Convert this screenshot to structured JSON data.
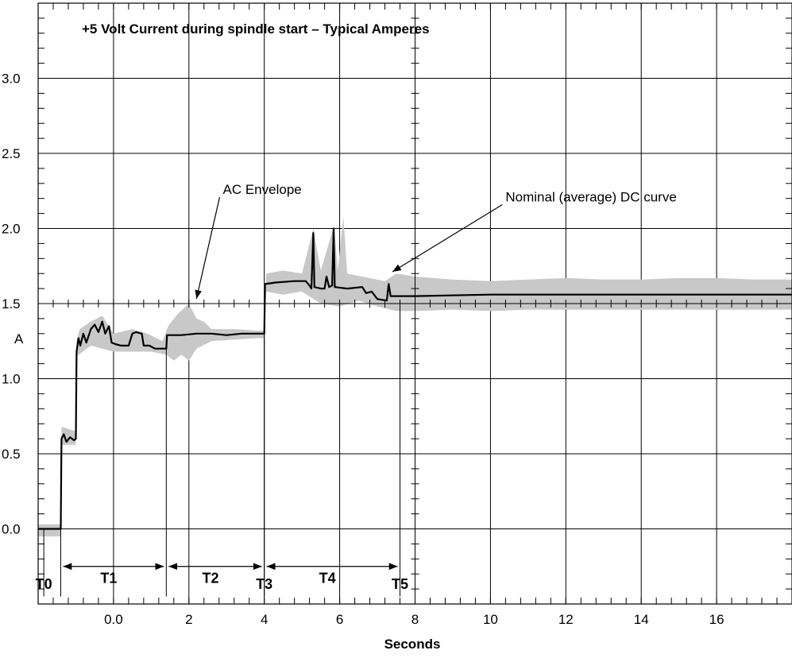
{
  "chart_data": {
    "type": "line",
    "title": "+5 Volt Current during spindle start – Typical Amperes",
    "xlabel": "Seconds",
    "ylabel": "A",
    "xlim": [
      -2,
      18
    ],
    "ylim": [
      -0.5,
      3.5
    ],
    "x_ticks": [
      {
        "v": 0,
        "label": "0.0"
      },
      {
        "v": 2,
        "label": "2"
      },
      {
        "v": 4,
        "label": "4"
      },
      {
        "v": 6,
        "label": "6"
      },
      {
        "v": 8,
        "label": "8"
      },
      {
        "v": 10,
        "label": "10"
      },
      {
        "v": 12,
        "label": "12"
      },
      {
        "v": 14,
        "label": "14"
      },
      {
        "v": 16,
        "label": "16"
      }
    ],
    "y_ticks": [
      {
        "v": 0.0,
        "label": "0.0"
      },
      {
        "v": 0.5,
        "label": "0.5"
      },
      {
        "v": 1.0,
        "label": "1.0"
      },
      {
        "v": 1.5,
        "label": "1.5"
      },
      {
        "v": 2.0,
        "label": "2.0"
      },
      {
        "v": 2.5,
        "label": "2.5"
      },
      {
        "v": 3.0,
        "label": "3.0"
      }
    ],
    "grid": true,
    "series": [
      {
        "name": "Nominal (average) DC curve",
        "color": "#000000",
        "points": [
          [
            -2,
            0.0
          ],
          [
            -1.4,
            0.0
          ],
          [
            -1.38,
            0.6
          ],
          [
            -1.32,
            0.63
          ],
          [
            -1.25,
            0.58
          ],
          [
            -1.15,
            0.61
          ],
          [
            -1.05,
            0.59
          ],
          [
            -1.0,
            0.6
          ],
          [
            -0.98,
            1.18
          ],
          [
            -0.93,
            1.27
          ],
          [
            -0.88,
            1.22
          ],
          [
            -0.8,
            1.3
          ],
          [
            -0.72,
            1.24
          ],
          [
            -0.6,
            1.33
          ],
          [
            -0.5,
            1.36
          ],
          [
            -0.4,
            1.31
          ],
          [
            -0.3,
            1.38
          ],
          [
            -0.22,
            1.3
          ],
          [
            -0.12,
            1.35
          ],
          [
            -0.05,
            1.24
          ],
          [
            0.05,
            1.23
          ],
          [
            0.2,
            1.22
          ],
          [
            0.4,
            1.22
          ],
          [
            0.5,
            1.3
          ],
          [
            0.6,
            1.31
          ],
          [
            0.75,
            1.3
          ],
          [
            0.8,
            1.22
          ],
          [
            0.95,
            1.22
          ],
          [
            1.1,
            1.2
          ],
          [
            1.4,
            1.2
          ],
          [
            1.42,
            1.29
          ],
          [
            1.8,
            1.29
          ],
          [
            2.2,
            1.3
          ],
          [
            2.6,
            1.3
          ],
          [
            3.0,
            1.29
          ],
          [
            3.4,
            1.3
          ],
          [
            3.8,
            1.3
          ],
          [
            4.0,
            1.3
          ],
          [
            4.02,
            1.63
          ],
          [
            4.3,
            1.64
          ],
          [
            4.8,
            1.65
          ],
          [
            5.1,
            1.65
          ],
          [
            5.2,
            1.62
          ],
          [
            5.25,
            1.6
          ],
          [
            5.3,
            1.97
          ],
          [
            5.33,
            1.61
          ],
          [
            5.5,
            1.6
          ],
          [
            5.6,
            1.6
          ],
          [
            5.65,
            1.68
          ],
          [
            5.72,
            1.61
          ],
          [
            5.8,
            1.62
          ],
          [
            5.84,
            2.0
          ],
          [
            5.87,
            1.61
          ],
          [
            6.2,
            1.6
          ],
          [
            6.6,
            1.61
          ],
          [
            6.7,
            1.57
          ],
          [
            6.85,
            1.58
          ],
          [
            7.0,
            1.53
          ],
          [
            7.25,
            1.52
          ],
          [
            7.3,
            1.63
          ],
          [
            7.35,
            1.55
          ],
          [
            8.0,
            1.55
          ],
          [
            10.0,
            1.56
          ],
          [
            12.0,
            1.56
          ],
          [
            14.0,
            1.56
          ],
          [
            16.0,
            1.56
          ],
          [
            18.0,
            1.56
          ]
        ]
      }
    ],
    "envelope": {
      "name": "AC Envelope",
      "color": "#c8c8c8",
      "upper": [
        [
          -2,
          0.03
        ],
        [
          -1.4,
          0.03
        ],
        [
          -1.38,
          0.68
        ],
        [
          -1.0,
          0.65
        ],
        [
          -0.98,
          1.25
        ],
        [
          -0.9,
          1.33
        ],
        [
          -0.6,
          1.38
        ],
        [
          -0.3,
          1.42
        ],
        [
          0.0,
          1.3
        ],
        [
          0.5,
          1.33
        ],
        [
          0.9,
          1.3
        ],
        [
          1.3,
          1.25
        ],
        [
          1.45,
          1.35
        ],
        [
          1.7,
          1.43
        ],
        [
          2.0,
          1.5
        ],
        [
          2.2,
          1.4
        ],
        [
          2.4,
          1.38
        ],
        [
          2.6,
          1.33
        ],
        [
          3.2,
          1.33
        ],
        [
          3.8,
          1.32
        ],
        [
          4.0,
          1.32
        ],
        [
          4.05,
          1.7
        ],
        [
          4.5,
          1.72
        ],
        [
          5.0,
          1.7
        ],
        [
          5.3,
          2.0
        ],
        [
          5.5,
          1.72
        ],
        [
          5.85,
          2.02
        ],
        [
          5.95,
          1.72
        ],
        [
          6.1,
          2.08
        ],
        [
          6.2,
          1.7
        ],
        [
          6.6,
          1.68
        ],
        [
          7.2,
          1.65
        ],
        [
          7.5,
          1.7
        ],
        [
          8.0,
          1.68
        ],
        [
          9.0,
          1.66
        ],
        [
          10.0,
          1.65
        ],
        [
          11.0,
          1.66
        ],
        [
          12.0,
          1.67
        ],
        [
          13.0,
          1.66
        ],
        [
          14.0,
          1.66
        ],
        [
          15.0,
          1.67
        ],
        [
          16.0,
          1.67
        ],
        [
          17.0,
          1.66
        ],
        [
          18.0,
          1.66
        ]
      ],
      "lower": [
        [
          -2,
          -0.05
        ],
        [
          -1.4,
          -0.05
        ],
        [
          -1.38,
          0.56
        ],
        [
          -1.0,
          0.56
        ],
        [
          -0.98,
          1.15
        ],
        [
          -0.6,
          1.22
        ],
        [
          0.0,
          1.18
        ],
        [
          0.5,
          1.18
        ],
        [
          1.0,
          1.18
        ],
        [
          1.4,
          1.16
        ],
        [
          1.6,
          1.12
        ],
        [
          1.8,
          1.16
        ],
        [
          2.0,
          1.12
        ],
        [
          2.2,
          1.2
        ],
        [
          2.6,
          1.25
        ],
        [
          3.2,
          1.26
        ],
        [
          3.8,
          1.27
        ],
        [
          4.0,
          1.27
        ],
        [
          4.05,
          1.58
        ],
        [
          4.5,
          1.56
        ],
        [
          5.0,
          1.58
        ],
        [
          5.5,
          1.5
        ],
        [
          6.0,
          1.48
        ],
        [
          6.5,
          1.52
        ],
        [
          7.0,
          1.48
        ],
        [
          7.5,
          1.45
        ],
        [
          8.0,
          1.45
        ],
        [
          9.0,
          1.46
        ],
        [
          10.0,
          1.45
        ],
        [
          11.0,
          1.46
        ],
        [
          12.0,
          1.46
        ],
        [
          13.0,
          1.46
        ],
        [
          14.0,
          1.46
        ],
        [
          15.0,
          1.46
        ],
        [
          16.0,
          1.46
        ],
        [
          17.0,
          1.46
        ],
        [
          18.0,
          1.46
        ]
      ]
    },
    "annotations": [
      {
        "text": "AC Envelope",
        "x": 2.9,
        "y": 2.23,
        "arrow_to": [
          2.2,
          1.5
        ]
      },
      {
        "text": "Nominal (average) DC curve",
        "x": 10.4,
        "y": 2.18,
        "arrow_to": [
          7.4,
          1.68
        ]
      }
    ],
    "phases": {
      "markers": [
        {
          "label": "T0",
          "x": -1.85
        },
        {
          "label": "T3",
          "x": 4.0
        },
        {
          "label": "T5",
          "x": 7.6
        }
      ],
      "spans": [
        {
          "label": "T1",
          "from": -1.4,
          "to": 1.4
        },
        {
          "label": "T2",
          "from": 1.4,
          "to": 4.0
        },
        {
          "label": "T4",
          "from": 4.0,
          "to": 7.6
        }
      ]
    }
  }
}
